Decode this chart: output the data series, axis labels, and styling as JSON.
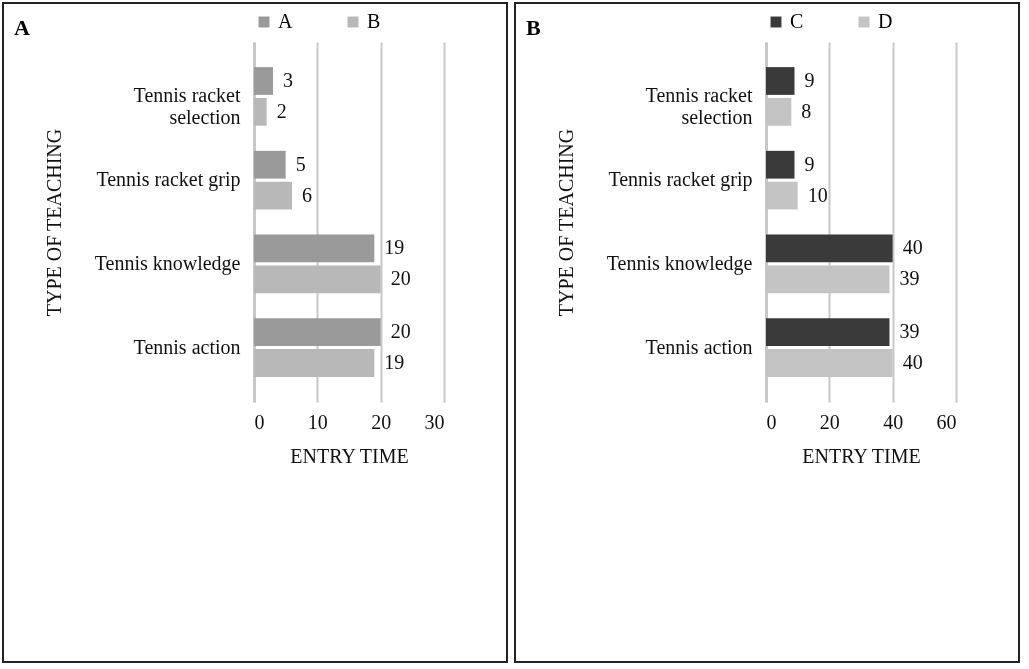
{
  "chart_data": [
    {
      "type": "bar",
      "orientation": "horizontal",
      "title": "A",
      "xlabel": "ENTRY TIME",
      "ylabel": "TYPE OF TEACHING",
      "categories": [
        "Tennis racket selection",
        "Tennis racket grip",
        "Tennis knowledge",
        "Tennis action"
      ],
      "series": [
        {
          "name": "A",
          "color": "#9a9a9a",
          "values": [
            3,
            5,
            19,
            20
          ]
        },
        {
          "name": "B",
          "color": "#b8b8b8",
          "values": [
            2,
            6,
            20,
            19
          ]
        }
      ],
      "xlim": [
        0,
        30
      ],
      "xticks": [
        0,
        10,
        20,
        30
      ],
      "grid": "x",
      "legend": "top",
      "data_labels": true
    },
    {
      "type": "bar",
      "orientation": "horizontal",
      "title": "B",
      "xlabel": "ENTRY TIME",
      "ylabel": "TYPE OF TEACHING",
      "categories": [
        "Tennis racket selection",
        "Tennis racket grip",
        "Tennis knowledge",
        "Tennis action"
      ],
      "series": [
        {
          "name": "C",
          "color": "#3a3a3a",
          "values": [
            9,
            9,
            40,
            39
          ]
        },
        {
          "name": "D",
          "color": "#c4c4c4",
          "values": [
            8,
            10,
            39,
            40
          ]
        }
      ],
      "xlim": [
        0,
        60
      ],
      "xticks": [
        0,
        20,
        40,
        60
      ],
      "grid": "x",
      "legend": "top",
      "data_labels": true
    }
  ]
}
